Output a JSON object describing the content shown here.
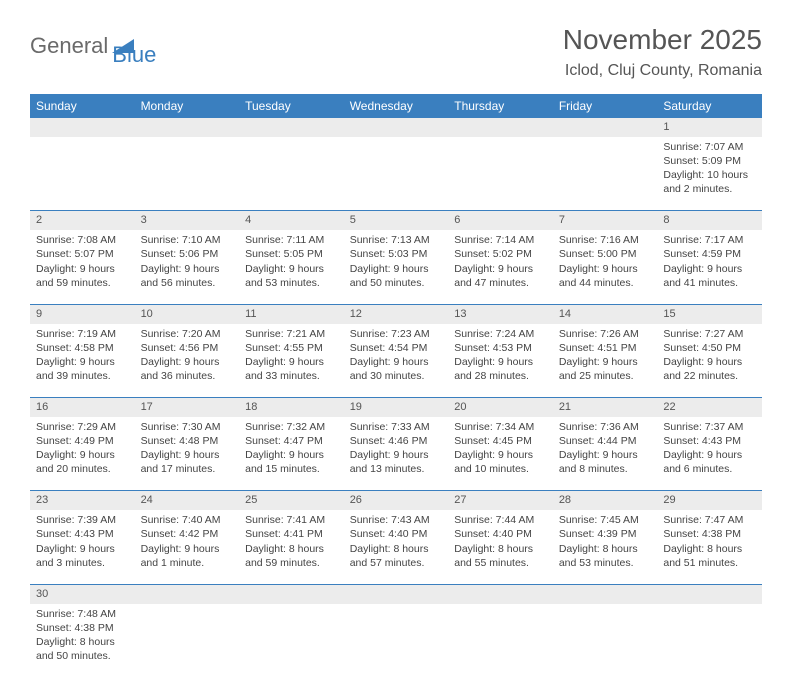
{
  "logo": {
    "text1": "General",
    "text2": "Blue"
  },
  "title": {
    "month": "November 2025",
    "location": "Iclod, Cluj County, Romania"
  },
  "colors": {
    "headerBg": "#3a7fbf",
    "headerText": "#ffffff",
    "dayBg": "#ececec",
    "borderColor": "#3a7fbf"
  },
  "dayNames": [
    "Sunday",
    "Monday",
    "Tuesday",
    "Wednesday",
    "Thursday",
    "Friday",
    "Saturday"
  ],
  "weeks": [
    [
      null,
      null,
      null,
      null,
      null,
      null,
      {
        "n": "1",
        "sr": "7:07 AM",
        "ss": "5:09 PM",
        "dl": "10 hours and 2 minutes."
      }
    ],
    [
      {
        "n": "2",
        "sr": "7:08 AM",
        "ss": "5:07 PM",
        "dl": "9 hours and 59 minutes."
      },
      {
        "n": "3",
        "sr": "7:10 AM",
        "ss": "5:06 PM",
        "dl": "9 hours and 56 minutes."
      },
      {
        "n": "4",
        "sr": "7:11 AM",
        "ss": "5:05 PM",
        "dl": "9 hours and 53 minutes."
      },
      {
        "n": "5",
        "sr": "7:13 AM",
        "ss": "5:03 PM",
        "dl": "9 hours and 50 minutes."
      },
      {
        "n": "6",
        "sr": "7:14 AM",
        "ss": "5:02 PM",
        "dl": "9 hours and 47 minutes."
      },
      {
        "n": "7",
        "sr": "7:16 AM",
        "ss": "5:00 PM",
        "dl": "9 hours and 44 minutes."
      },
      {
        "n": "8",
        "sr": "7:17 AM",
        "ss": "4:59 PM",
        "dl": "9 hours and 41 minutes."
      }
    ],
    [
      {
        "n": "9",
        "sr": "7:19 AM",
        "ss": "4:58 PM",
        "dl": "9 hours and 39 minutes."
      },
      {
        "n": "10",
        "sr": "7:20 AM",
        "ss": "4:56 PM",
        "dl": "9 hours and 36 minutes."
      },
      {
        "n": "11",
        "sr": "7:21 AM",
        "ss": "4:55 PM",
        "dl": "9 hours and 33 minutes."
      },
      {
        "n": "12",
        "sr": "7:23 AM",
        "ss": "4:54 PM",
        "dl": "9 hours and 30 minutes."
      },
      {
        "n": "13",
        "sr": "7:24 AM",
        "ss": "4:53 PM",
        "dl": "9 hours and 28 minutes."
      },
      {
        "n": "14",
        "sr": "7:26 AM",
        "ss": "4:51 PM",
        "dl": "9 hours and 25 minutes."
      },
      {
        "n": "15",
        "sr": "7:27 AM",
        "ss": "4:50 PM",
        "dl": "9 hours and 22 minutes."
      }
    ],
    [
      {
        "n": "16",
        "sr": "7:29 AM",
        "ss": "4:49 PM",
        "dl": "9 hours and 20 minutes."
      },
      {
        "n": "17",
        "sr": "7:30 AM",
        "ss": "4:48 PM",
        "dl": "9 hours and 17 minutes."
      },
      {
        "n": "18",
        "sr": "7:32 AM",
        "ss": "4:47 PM",
        "dl": "9 hours and 15 minutes."
      },
      {
        "n": "19",
        "sr": "7:33 AM",
        "ss": "4:46 PM",
        "dl": "9 hours and 13 minutes."
      },
      {
        "n": "20",
        "sr": "7:34 AM",
        "ss": "4:45 PM",
        "dl": "9 hours and 10 minutes."
      },
      {
        "n": "21",
        "sr": "7:36 AM",
        "ss": "4:44 PM",
        "dl": "9 hours and 8 minutes."
      },
      {
        "n": "22",
        "sr": "7:37 AM",
        "ss": "4:43 PM",
        "dl": "9 hours and 6 minutes."
      }
    ],
    [
      {
        "n": "23",
        "sr": "7:39 AM",
        "ss": "4:43 PM",
        "dl": "9 hours and 3 minutes."
      },
      {
        "n": "24",
        "sr": "7:40 AM",
        "ss": "4:42 PM",
        "dl": "9 hours and 1 minute."
      },
      {
        "n": "25",
        "sr": "7:41 AM",
        "ss": "4:41 PM",
        "dl": "8 hours and 59 minutes."
      },
      {
        "n": "26",
        "sr": "7:43 AM",
        "ss": "4:40 PM",
        "dl": "8 hours and 57 minutes."
      },
      {
        "n": "27",
        "sr": "7:44 AM",
        "ss": "4:40 PM",
        "dl": "8 hours and 55 minutes."
      },
      {
        "n": "28",
        "sr": "7:45 AM",
        "ss": "4:39 PM",
        "dl": "8 hours and 53 minutes."
      },
      {
        "n": "29",
        "sr": "7:47 AM",
        "ss": "4:38 PM",
        "dl": "8 hours and 51 minutes."
      }
    ],
    [
      {
        "n": "30",
        "sr": "7:48 AM",
        "ss": "4:38 PM",
        "dl": "8 hours and 50 minutes."
      },
      null,
      null,
      null,
      null,
      null,
      null
    ]
  ],
  "labels": {
    "sunrise": "Sunrise:",
    "sunset": "Sunset:",
    "daylight": "Daylight:"
  }
}
